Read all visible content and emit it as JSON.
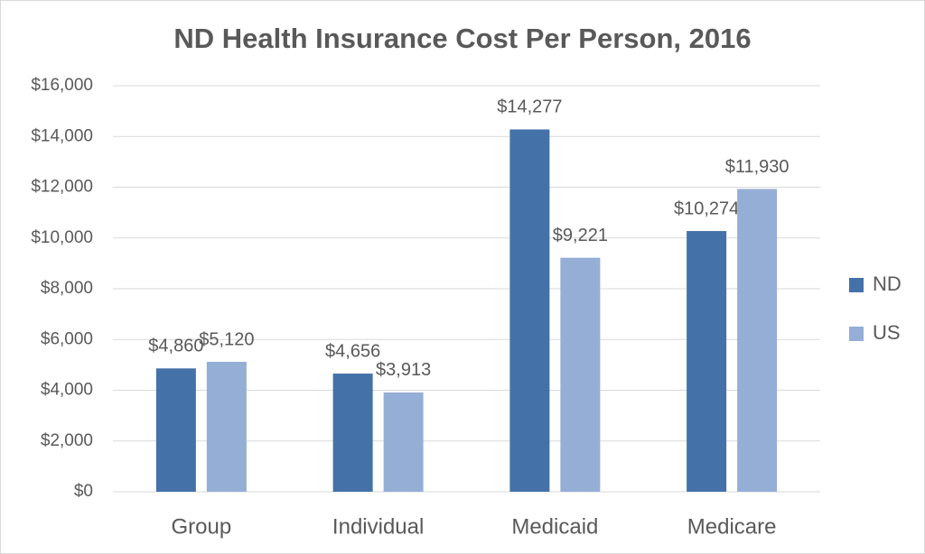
{
  "chart_data": {
    "type": "bar",
    "title": "ND Health Insurance Cost Per Person, 2016",
    "categories": [
      "Group",
      "Individual",
      "Medicaid",
      "Medicare"
    ],
    "series": [
      {
        "name": "ND",
        "color": "#4472a8",
        "values": [
          4860,
          4656,
          14277,
          10274
        ],
        "value_labels": [
          "$4,860",
          "$4,656",
          "$14,277",
          "$10,274"
        ]
      },
      {
        "name": "US",
        "color": "#94aed6",
        "values": [
          5120,
          3913,
          9221,
          11930
        ],
        "value_labels": [
          "$5,120",
          "$3,913",
          "$9,221",
          "$11,930"
        ]
      }
    ],
    "ylim": [
      0,
      16000
    ],
    "yticks": [
      {
        "value": 0,
        "label": "$0"
      },
      {
        "value": 2000,
        "label": "$2,000"
      },
      {
        "value": 4000,
        "label": "$4,000"
      },
      {
        "value": 6000,
        "label": "$6,000"
      },
      {
        "value": 8000,
        "label": "$8,000"
      },
      {
        "value": 10000,
        "label": "$10,000"
      },
      {
        "value": 12000,
        "label": "$12,000"
      },
      {
        "value": 14000,
        "label": "$14,000"
      },
      {
        "value": 16000,
        "label": "$16,000"
      }
    ],
    "grid": true,
    "legend": "right"
  }
}
